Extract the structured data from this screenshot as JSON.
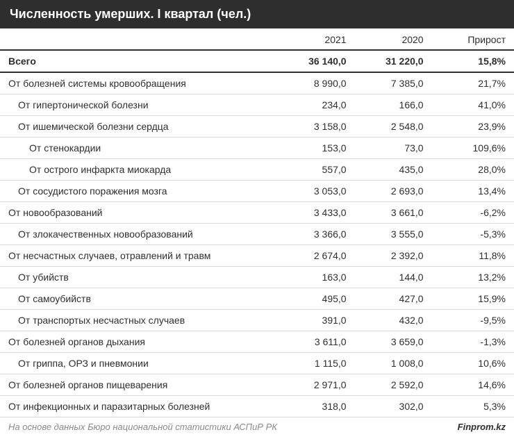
{
  "title": "Численность умерших. I квартал (чел.)",
  "columns": [
    "",
    "2021",
    "2020",
    "Прирост"
  ],
  "rows": [
    {
      "label": "Всего",
      "v2021": "36 140,0",
      "v2020": "31 220,0",
      "growth": "15,8%",
      "bold": true,
      "indent": 0
    },
    {
      "label": "От болезней системы кровообращения",
      "v2021": "8 990,0",
      "v2020": "7 385,0",
      "growth": "21,7%",
      "bold": false,
      "indent": 0
    },
    {
      "label": "От гипертонической болезни",
      "v2021": "234,0",
      "v2020": "166,0",
      "growth": "41,0%",
      "bold": false,
      "indent": 1
    },
    {
      "label": "От ишемической болезни сердца",
      "v2021": "3 158,0",
      "v2020": "2 548,0",
      "growth": "23,9%",
      "bold": false,
      "indent": 1
    },
    {
      "label": "От стенокардии",
      "v2021": "153,0",
      "v2020": "73,0",
      "growth": "109,6%",
      "bold": false,
      "indent": 2
    },
    {
      "label": "От острого инфаркта миокарда",
      "v2021": "557,0",
      "v2020": "435,0",
      "growth": "28,0%",
      "bold": false,
      "indent": 2
    },
    {
      "label": "От сосудистого поражения мозга",
      "v2021": "3 053,0",
      "v2020": "2 693,0",
      "growth": "13,4%",
      "bold": false,
      "indent": 1
    },
    {
      "label": "От новообразований",
      "v2021": "3 433,0",
      "v2020": "3 661,0",
      "growth": "-6,2%",
      "bold": false,
      "indent": 0
    },
    {
      "label": "От злокачественных новообразований",
      "v2021": "3 366,0",
      "v2020": "3 555,0",
      "growth": "-5,3%",
      "bold": false,
      "indent": 1
    },
    {
      "label": "От несчастных случаев, отравлений и травм",
      "v2021": "2 674,0",
      "v2020": "2 392,0",
      "growth": "11,8%",
      "bold": false,
      "indent": 0
    },
    {
      "label": "От убийств",
      "v2021": "163,0",
      "v2020": "144,0",
      "growth": "13,2%",
      "bold": false,
      "indent": 1
    },
    {
      "label": "От самоубийств",
      "v2021": "495,0",
      "v2020": "427,0",
      "growth": "15,9%",
      "bold": false,
      "indent": 1
    },
    {
      "label": "От транспортых несчастных случаев",
      "v2021": "391,0",
      "v2020": "432,0",
      "growth": "-9,5%",
      "bold": false,
      "indent": 1
    },
    {
      "label": "От болезней органов дыхания",
      "v2021": "3 611,0",
      "v2020": "3 659,0",
      "growth": "-1,3%",
      "bold": false,
      "indent": 0
    },
    {
      "label": "От гриппа, ОРЗ и пневмонии",
      "v2021": "1 115,0",
      "v2020": "1 008,0",
      "growth": "10,6%",
      "bold": false,
      "indent": 1
    },
    {
      "label": "От болезней органов пищеварения",
      "v2021": "2 971,0",
      "v2020": "2 592,0",
      "growth": "14,6%",
      "bold": false,
      "indent": 0
    },
    {
      "label": "От инфекционных и паразитарных болезней",
      "v2021": "318,0",
      "v2020": "302,0",
      "growth": "5,3%",
      "bold": false,
      "indent": 0
    }
  ],
  "footer": {
    "source": "На основе данных Бюро национальной статистики АСПиР РК",
    "brand": "Finprom.kz"
  },
  "style": {
    "title_bg": "#2e2e2e",
    "title_color": "#ffffff",
    "row_border": "#d9d9d9",
    "strong_border": "#2e2e2e",
    "text_color": "#2e2e2e",
    "source_color": "#8a8a8a",
    "font_size_body": 14,
    "font_size_title": 18
  }
}
